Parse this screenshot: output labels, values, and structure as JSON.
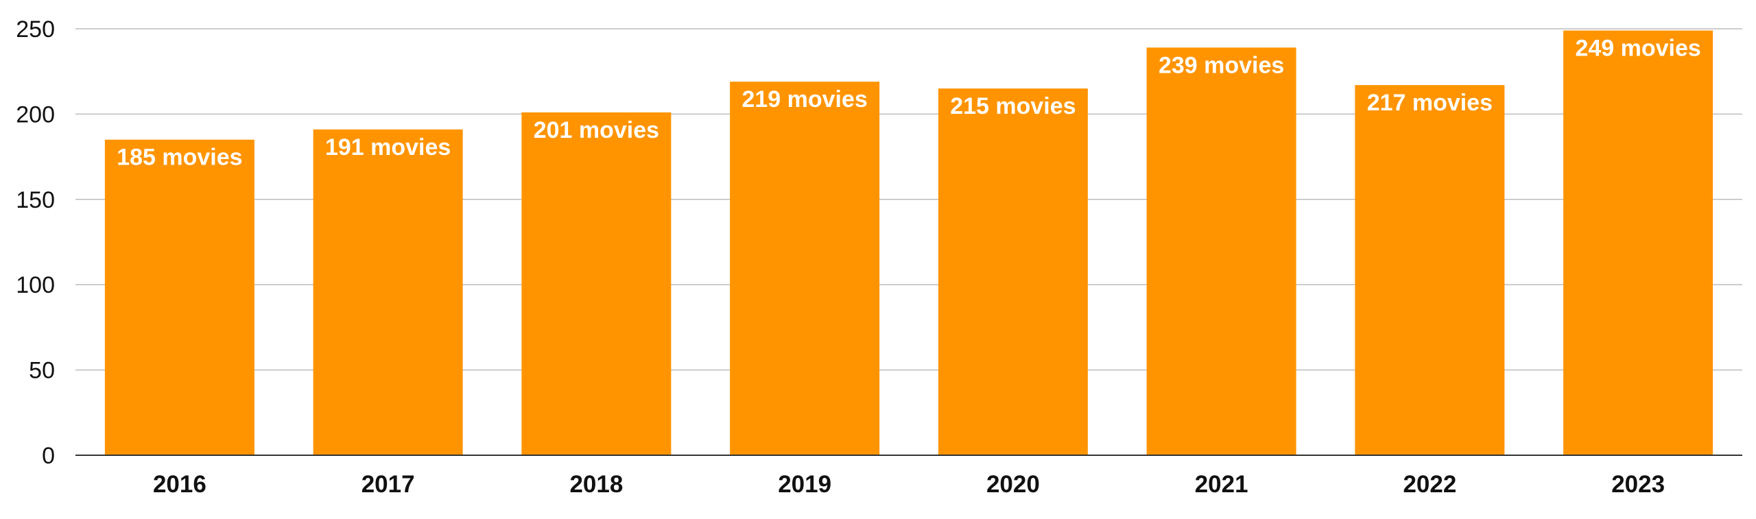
{
  "chart_data": {
    "type": "bar",
    "categories": [
      "2016",
      "2017",
      "2018",
      "2019",
      "2020",
      "2021",
      "2022",
      "2023"
    ],
    "values": [
      185,
      191,
      201,
      219,
      215,
      239,
      217,
      249
    ],
    "data_labels": [
      "185 movies",
      "191 movies",
      "201 movies",
      "219 movies",
      "215 movies",
      "239 movies",
      "217 movies",
      "249 movies"
    ],
    "yticks": [
      "0",
      "50",
      "100",
      "150",
      "200",
      "250"
    ],
    "ylim": [
      0,
      250
    ],
    "grid": true,
    "legend": "none",
    "colors": {
      "bar": "#FF9400",
      "grid": "#BDBDBD",
      "axis": "#333333",
      "label": "#FFFFFF",
      "text": "#111111"
    }
  }
}
